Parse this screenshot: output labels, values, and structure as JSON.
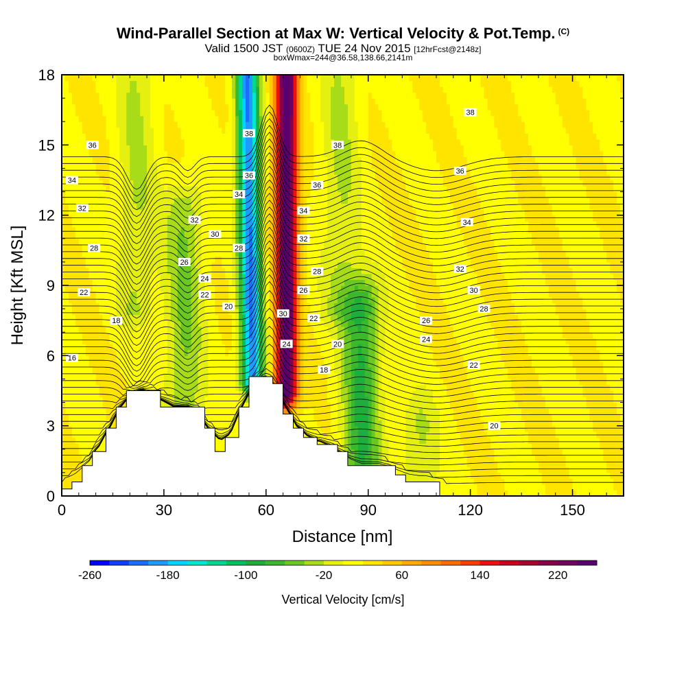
{
  "title": {
    "main": "Wind-Parallel Section at Max W: Vertical Velocity & Pot.Temp.",
    "copyright": "(C)",
    "valid_prefix": "Valid 1500 JST",
    "valid_utc": "(0600Z)",
    "valid_date": "TUE 24 Nov 2015",
    "forecast": "[12hrFcst@2148z]",
    "box_info": "boxWmax=244@36.58,138.66,2141m"
  },
  "chart_data": {
    "type": "heatmap",
    "xlabel": "Distance [nm]",
    "ylabel": "Height [Kft MSL]",
    "xlim": [
      0,
      165
    ],
    "ylim": [
      0,
      18
    ],
    "xticks": [
      0,
      30,
      60,
      90,
      120,
      150
    ],
    "yticks": [
      0,
      3,
      6,
      9,
      12,
      15,
      18
    ],
    "colorbar": {
      "label": "Vertical Velocity [cm/s]",
      "tick_labels": [
        "-260",
        "-180",
        "-100",
        "-20",
        "60",
        "140",
        "220"
      ],
      "tick_values": [
        -260,
        -180,
        -100,
        -20,
        60,
        140,
        220
      ],
      "range": [
        -260,
        260
      ],
      "colors": [
        "#0000ff",
        "#1040ff",
        "#1a6eff",
        "#1e9bff",
        "#00d4ff",
        "#00e8d0",
        "#00d890",
        "#00c060",
        "#1fae3c",
        "#3cb82c",
        "#6ac820",
        "#a8dc18",
        "#e6f010",
        "#ffff00",
        "#ffe400",
        "#ffc800",
        "#ffaa00",
        "#ff8c00",
        "#ff6a00",
        "#ff3c00",
        "#ee1010",
        "#cc0018",
        "#aa0030",
        "#8a0048",
        "#72005e",
        "#5a006e"
      ]
    },
    "features": [
      {
        "x": 56,
        "z_bottom": 5,
        "z_top": 18,
        "w": -220
      },
      {
        "x": 66,
        "z_bottom": 4.5,
        "z_top": 18,
        "w": 244
      },
      {
        "x": 88,
        "z_bottom": 1,
        "z_top": 8,
        "w": -100
      },
      {
        "x": 105,
        "z_bottom": 0.5,
        "z_top": 3,
        "w": -40
      },
      {
        "x": 36,
        "z_bottom": 4,
        "z_top": 12,
        "w": -60
      },
      {
        "x": 22,
        "z_bottom": 8,
        "z_top": 18,
        "w": -40
      },
      {
        "x": 82,
        "z_bottom": 8,
        "z_top": 18,
        "w": -40
      }
    ],
    "terrain": [
      [
        0,
        0.3
      ],
      [
        3,
        0.3
      ],
      [
        3,
        0.6
      ],
      [
        6,
        0.6
      ],
      [
        6,
        1.3
      ],
      [
        9,
        1.3
      ],
      [
        9,
        1.9
      ],
      [
        13,
        1.9
      ],
      [
        13,
        2.9
      ],
      [
        16,
        2.9
      ],
      [
        16,
        3.8
      ],
      [
        19,
        3.8
      ],
      [
        19,
        4.5
      ],
      [
        29,
        4.5
      ],
      [
        29,
        3.8
      ],
      [
        42,
        3.8
      ],
      [
        42,
        2.9
      ],
      [
        45,
        2.9
      ],
      [
        45,
        1.9
      ],
      [
        48,
        1.9
      ],
      [
        48,
        2.5
      ],
      [
        52,
        2.5
      ],
      [
        52,
        3.8
      ],
      [
        55,
        3.8
      ],
      [
        55,
        5.1
      ],
      [
        62,
        5.1
      ],
      [
        62,
        4.8
      ],
      [
        65,
        4.8
      ],
      [
        65,
        3.5
      ],
      [
        68,
        3.5
      ],
      [
        68,
        2.9
      ],
      [
        71,
        2.9
      ],
      [
        71,
        2.5
      ],
      [
        75,
        2.5
      ],
      [
        75,
        2.2
      ],
      [
        81,
        2.2
      ],
      [
        81,
        1.9
      ],
      [
        84,
        1.9
      ],
      [
        84,
        1.3
      ],
      [
        98,
        1.3
      ],
      [
        98,
        0.9
      ],
      [
        101,
        0.9
      ],
      [
        101,
        0.6
      ],
      [
        111,
        0.6
      ],
      [
        111,
        0
      ]
    ],
    "theta_labels": [
      {
        "x": 9,
        "z": 15,
        "text": "36"
      },
      {
        "x": 3,
        "z": 13.5,
        "text": "34"
      },
      {
        "x": 6,
        "z": 12.3,
        "text": "32"
      },
      {
        "x": 9.5,
        "z": 10.6,
        "text": "28"
      },
      {
        "x": 6.5,
        "z": 8.7,
        "text": "22"
      },
      {
        "x": 16,
        "z": 7.5,
        "text": "18"
      },
      {
        "x": 3,
        "z": 5.9,
        "text": "16"
      },
      {
        "x": 39,
        "z": 11.8,
        "text": "32"
      },
      {
        "x": 45,
        "z": 11.2,
        "text": "30"
      },
      {
        "x": 52,
        "z": 10.6,
        "text": "28"
      },
      {
        "x": 36,
        "z": 10,
        "text": "26"
      },
      {
        "x": 42,
        "z": 9.3,
        "text": "24"
      },
      {
        "x": 42,
        "z": 8.6,
        "text": "22"
      },
      {
        "x": 49,
        "z": 8.1,
        "text": "20"
      },
      {
        "x": 55,
        "z": 15.5,
        "text": "38"
      },
      {
        "x": 55,
        "z": 13.7,
        "text": "36"
      },
      {
        "x": 52,
        "z": 12.9,
        "text": "34"
      },
      {
        "x": 81,
        "z": 15,
        "text": "38"
      },
      {
        "x": 75,
        "z": 13.3,
        "text": "36"
      },
      {
        "x": 71,
        "z": 12.2,
        "text": "34"
      },
      {
        "x": 71,
        "z": 11,
        "text": "32"
      },
      {
        "x": 75,
        "z": 9.6,
        "text": "28"
      },
      {
        "x": 71,
        "z": 8.8,
        "text": "26"
      },
      {
        "x": 65,
        "z": 7.8,
        "text": "30"
      },
      {
        "x": 74,
        "z": 7.6,
        "text": "22"
      },
      {
        "x": 66,
        "z": 6.5,
        "text": "24"
      },
      {
        "x": 81,
        "z": 6.5,
        "text": "20"
      },
      {
        "x": 77,
        "z": 5.4,
        "text": "18"
      },
      {
        "x": 120,
        "z": 16.4,
        "text": "38"
      },
      {
        "x": 117,
        "z": 13.9,
        "text": "36"
      },
      {
        "x": 119,
        "z": 11.7,
        "text": "34"
      },
      {
        "x": 117,
        "z": 9.7,
        "text": "32"
      },
      {
        "x": 121,
        "z": 8.8,
        "text": "30"
      },
      {
        "x": 124,
        "z": 8,
        "text": "28"
      },
      {
        "x": 107,
        "z": 7.5,
        "text": "26"
      },
      {
        "x": 107,
        "z": 6.7,
        "text": "24"
      },
      {
        "x": 121,
        "z": 5.6,
        "text": "22"
      },
      {
        "x": 127,
        "z": 3,
        "text": "20"
      }
    ]
  }
}
